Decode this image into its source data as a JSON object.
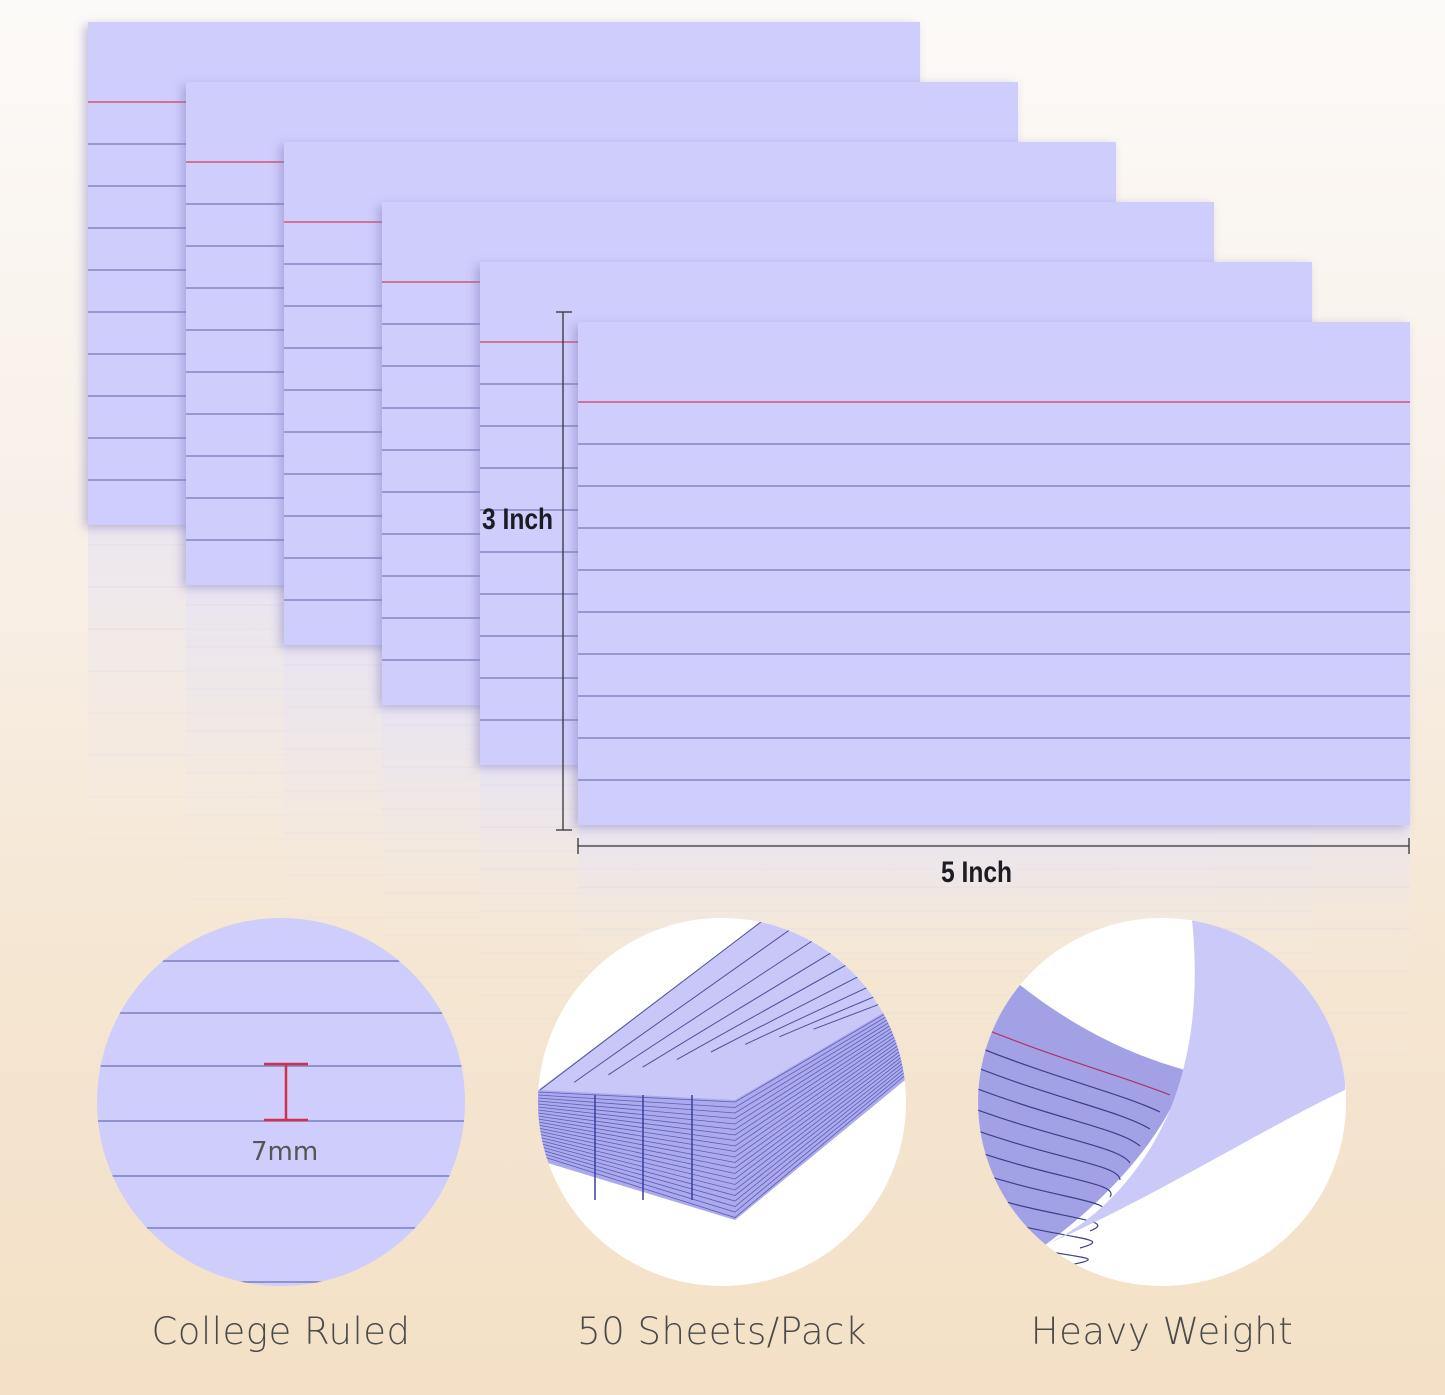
{
  "colors": {
    "card": "#cfcdfc",
    "card_edge": "#b9b6ee",
    "rule_line": "#5f63a8",
    "margin_line": "#d0405a",
    "dimension_line": "#333333",
    "label_text": "#4a4a4a"
  },
  "dimensions": {
    "height_label": "3 Inch",
    "width_label": "5 Inch"
  },
  "features": [
    {
      "label": "College Ruled",
      "detail": "7mm"
    },
    {
      "label": "50 Sheets/Pack"
    },
    {
      "label": "Heavy Weight"
    }
  ],
  "card_count": 6
}
